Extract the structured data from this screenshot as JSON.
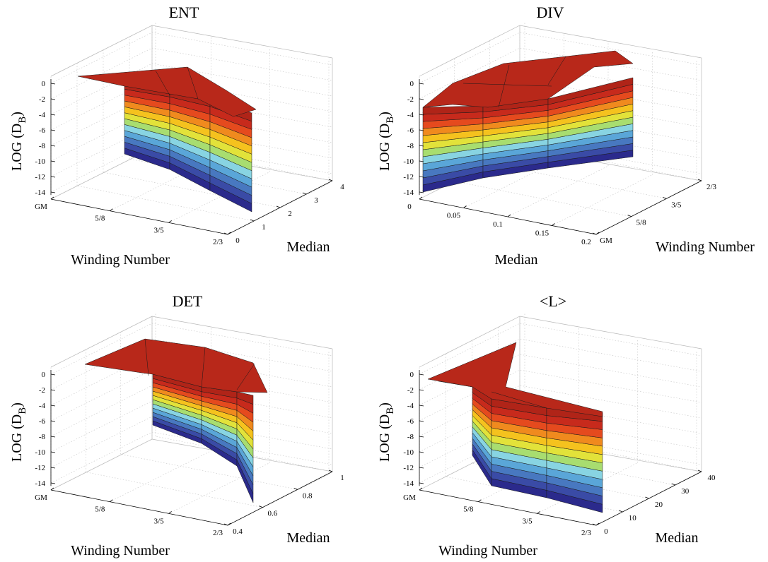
{
  "chart_data": [
    {
      "type": "surface",
      "title": "ENT",
      "zlabel": "LOG (D_B)",
      "xlabel": "Winding Number",
      "ylabel": "Median",
      "x_ticks": [
        "GM",
        "5/8",
        "3/5",
        "2/3"
      ],
      "y_ticks": [
        "0",
        "1",
        "2",
        "3",
        "4"
      ],
      "z_ticks": [
        "0",
        "-2",
        "-4",
        "-6",
        "-8",
        "-10",
        "-12",
        "-14"
      ],
      "x": [
        "GM",
        "5/8",
        "3/5",
        "2/3"
      ],
      "y_range": [
        0,
        4
      ],
      "z_range": [
        -15,
        0
      ],
      "series": [
        {
          "values": [
            -15,
            -14,
            -12,
            -12
          ],
          "top_y": 2.9,
          "cap_z": [
            2.5,
            2.5,
            2.0,
            -0.2
          ]
        },
        {
          "values": [
            -16,
            -15,
            -13.5,
            -12.5
          ],
          "top_y": 0.1,
          "cap_z": [
            0,
            0,
            0,
            -4
          ]
        }
      ],
      "levels": [
        -14,
        -12,
        -10,
        -8,
        -6,
        -4,
        -2,
        0
      ]
    },
    {
      "type": "surface",
      "title": "DIV",
      "zlabel": "LOG (D_B)",
      "xlabel": "Median",
      "ylabel": "Winding Number",
      "x_ticks": [
        "0",
        "0.05",
        "0.1",
        "0.15",
        "0.2"
      ],
      "y_ticks": [
        "GM",
        "5/8",
        "3/5",
        "2/3"
      ],
      "z_ticks": [
        "0",
        "-2",
        "-4",
        "-6",
        "-8",
        "-10",
        "-12",
        "-14"
      ],
      "x": [
        0.0,
        0.05,
        0.1,
        0.15,
        0.2
      ],
      "y_range": [
        "GM",
        "2/3"
      ],
      "z_range": [
        -15,
        0
      ],
      "series": [
        {
          "values": [
            -14,
            -12.5,
            -11,
            -10,
            -10.5
          ]
        },
        {
          "values": [
            -12.5,
            -11.5,
            -10,
            -9.5,
            -9
          ]
        }
      ],
      "levels": [
        -14,
        -12,
        -10,
        -8,
        -6,
        -4,
        -2,
        0
      ]
    },
    {
      "type": "surface",
      "title": "DET",
      "zlabel": "LOG (D_B)",
      "xlabel": "Winding Number",
      "ylabel": "Median",
      "x_ticks": [
        "GM",
        "5/8",
        "3/5",
        "2/3"
      ],
      "y_ticks": [
        "0.4",
        "0.6",
        "0.8",
        "1"
      ],
      "z_ticks": [
        "0",
        "-2",
        "-4",
        "-6",
        "-8",
        "-10",
        "-12",
        "-14"
      ],
      "x": [
        "GM",
        "5/8",
        "3/5",
        "2/3"
      ],
      "y_range": [
        0.4,
        1
      ],
      "z_range": [
        -15,
        0
      ],
      "series": [
        {
          "values": [
            -13,
            -12,
            -11,
            -14
          ]
        },
        {
          "values": [
            -14,
            -13,
            -12,
            -17
          ]
        }
      ],
      "levels": [
        -14,
        -12,
        -10,
        -8,
        -6,
        -4,
        -2,
        0
      ]
    },
    {
      "type": "surface",
      "title": "<L>",
      "zlabel": "LOG (D_B)",
      "xlabel": "Winding Number",
      "ylabel": "Median",
      "x_ticks": [
        "GM",
        "5/8",
        "3/5",
        "2/3"
      ],
      "y_ticks": [
        "0",
        "10",
        "20",
        "30",
        "40"
      ],
      "z_ticks": [
        "0",
        "-2",
        "-4",
        "-6",
        "-8",
        "-10",
        "-12",
        "-14"
      ],
      "x": [
        "GM",
        "5/8",
        "3/5",
        "2/3"
      ],
      "y_range": [
        0,
        40
      ],
      "z_range": [
        -15,
        0
      ],
      "series": [
        {
          "values": [
            -11,
            -15,
            -15,
            -15
          ]
        },
        {
          "values": [
            -12,
            -15,
            -15,
            -15.5
          ]
        }
      ],
      "levels": [
        -14,
        -12,
        -10,
        -8,
        -6,
        -4,
        -2,
        0
      ]
    }
  ],
  "colormap": [
    "#2b2a8c",
    "#3a4ba6",
    "#4878c0",
    "#5aa6d8",
    "#88d4e2",
    "#a8dd70",
    "#e2e23a",
    "#f5c21e",
    "#f08a1e",
    "#e54a1e",
    "#c72a1c",
    "#b02418"
  ]
}
